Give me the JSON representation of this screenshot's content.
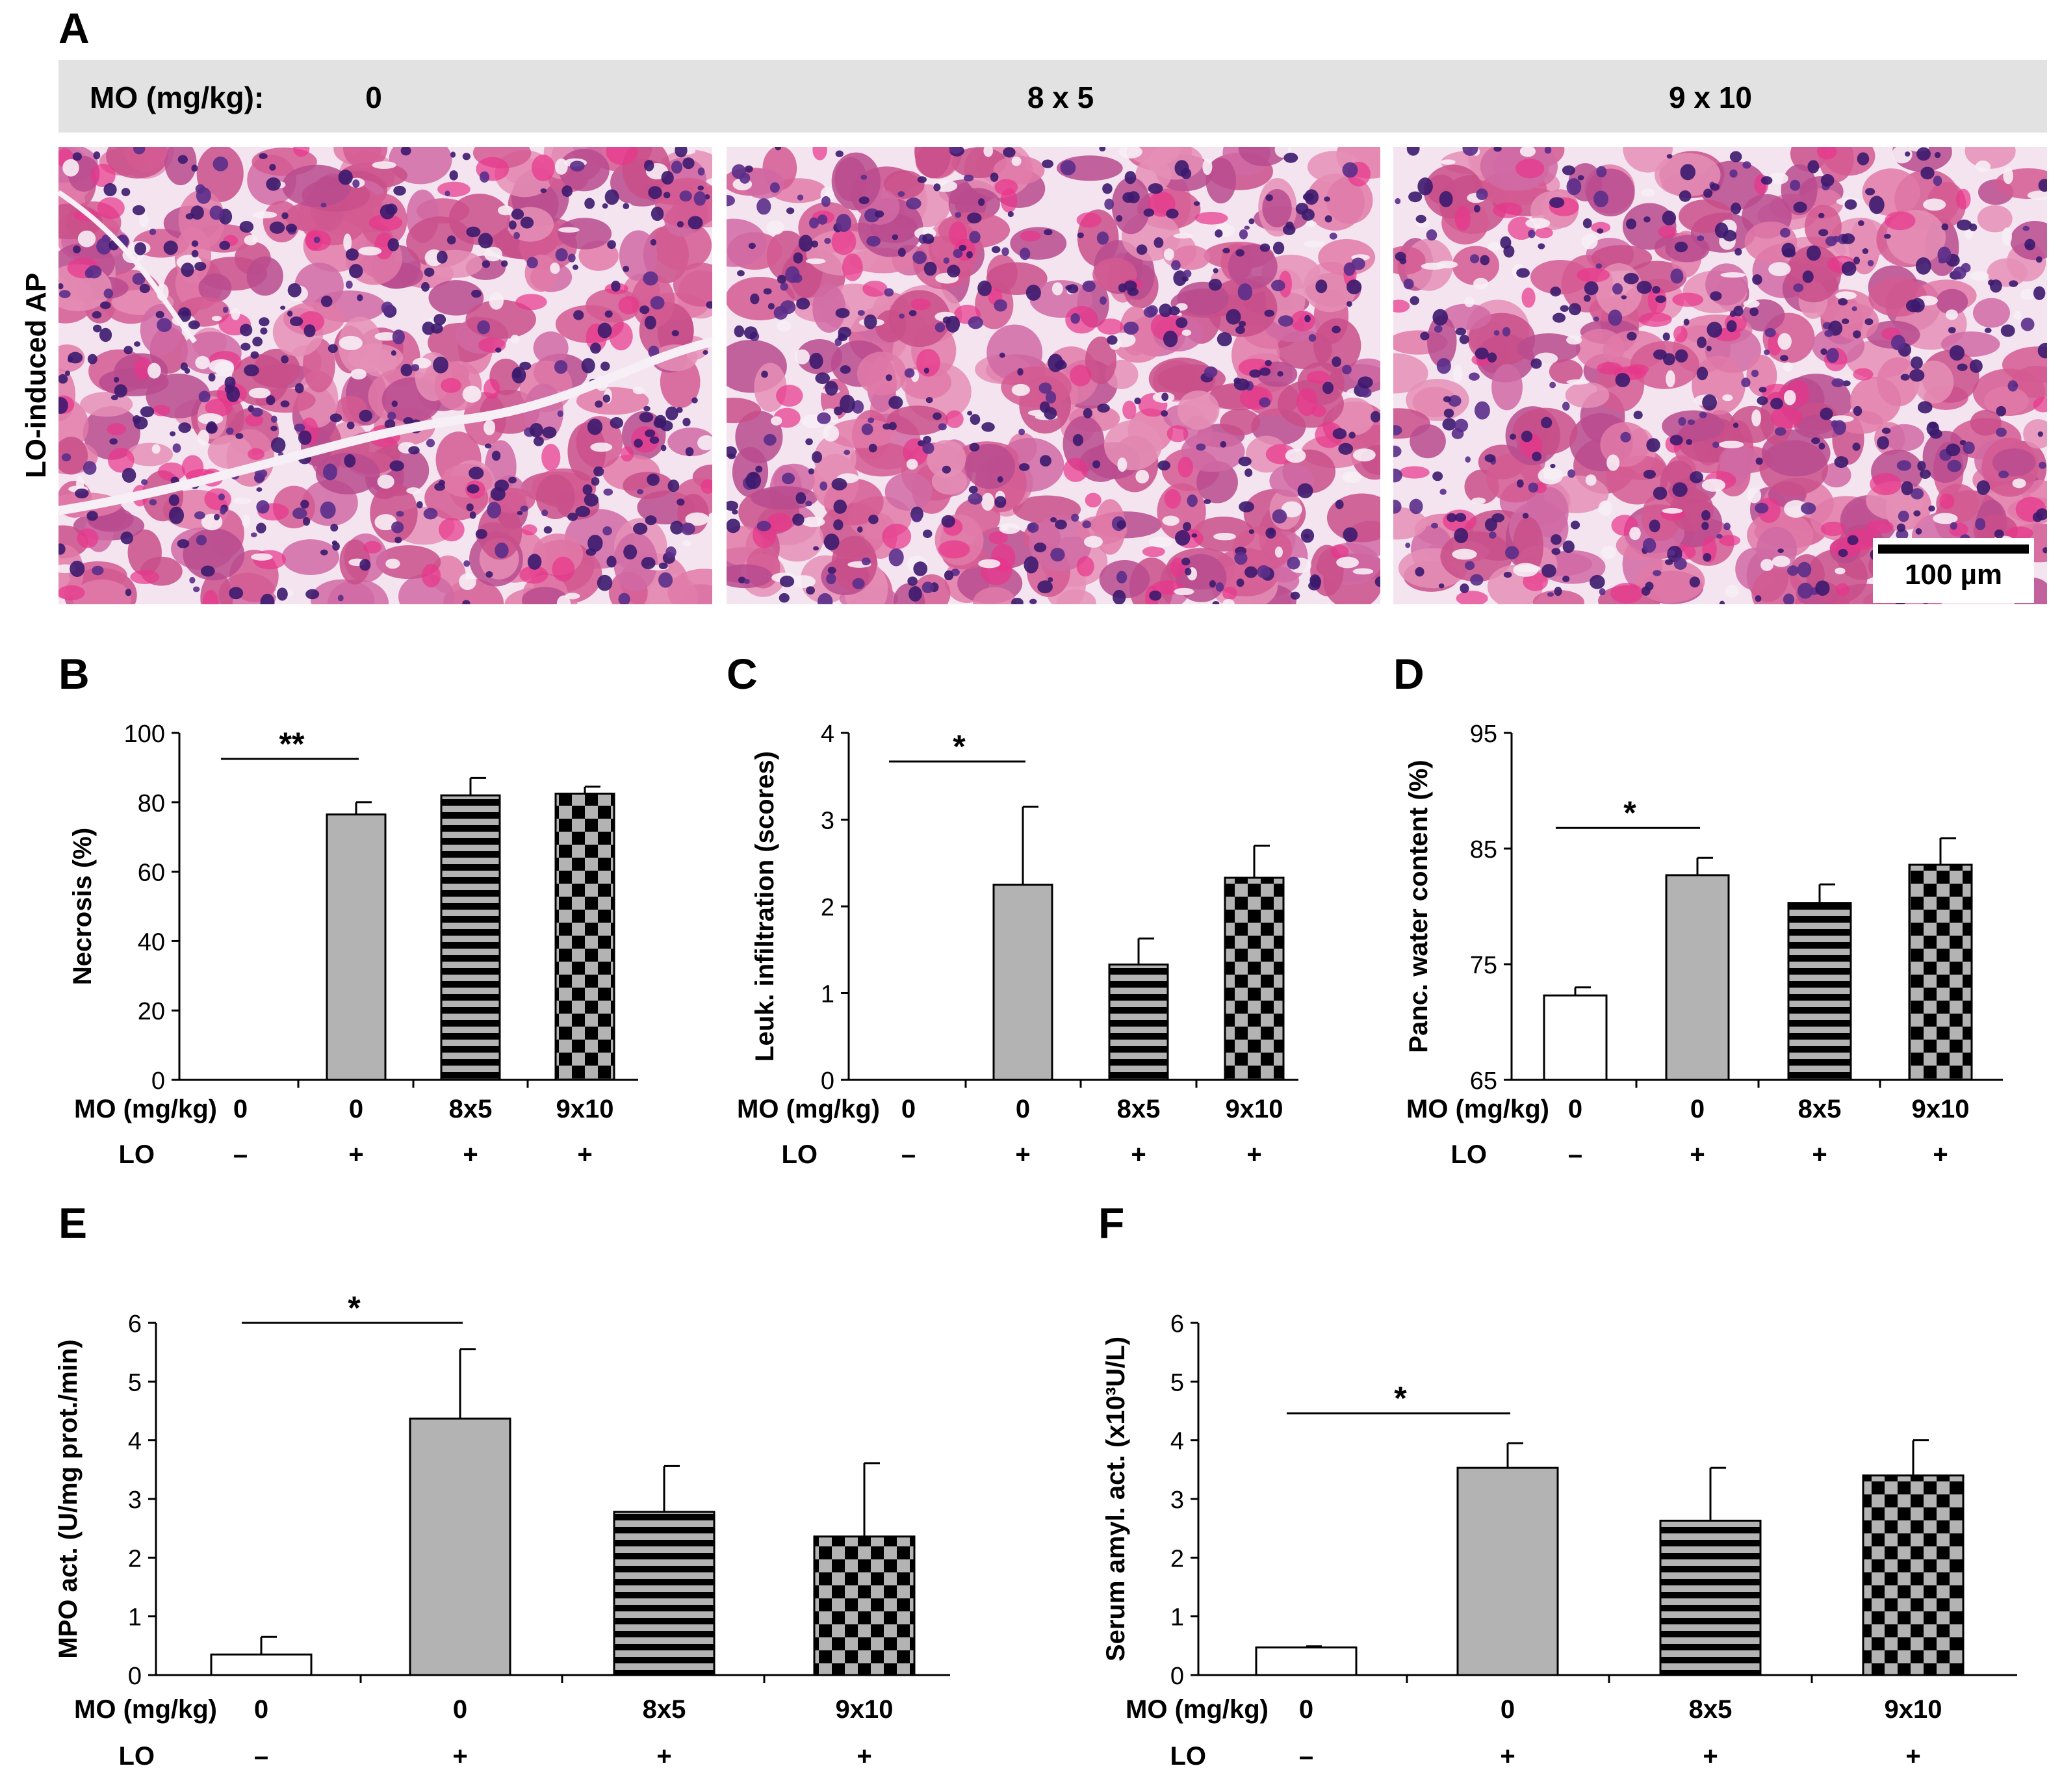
{
  "panel_labels": [
    "A",
    "B",
    "C",
    "D",
    "E",
    "F"
  ],
  "panel_a": {
    "header_label": "MO (mg/kg):",
    "header_doses": [
      "0",
      "8 x 5",
      "9 x 10"
    ],
    "row_label": "LO-induced AP",
    "scale_bar_label": "100 µm",
    "colors": {
      "header_bg": "#e2e2e2",
      "stain_pink": "#d9619a",
      "stain_purple": "#3c1a6e",
      "background": "#f4e4f0"
    }
  },
  "row_labels": {
    "dose": "MO (mg/kg)",
    "lo": "LO"
  },
  "groups": [
    {
      "dose": "0",
      "lo": "–",
      "pattern": "white"
    },
    {
      "dose": "0",
      "lo": "+",
      "pattern": "gray"
    },
    {
      "dose": "8x5",
      "lo": "+",
      "pattern": "stripes"
    },
    {
      "dose": "9x10",
      "lo": "+",
      "pattern": "checker"
    }
  ],
  "chart_data": [
    {
      "id": "B",
      "type": "bar",
      "ylabel": "Necrosis (%)",
      "ylim": [
        0,
        100
      ],
      "yticks": [
        "0",
        "20",
        "40",
        "60",
        "80",
        "100"
      ],
      "values": [
        0,
        76.5,
        82,
        82.5
      ],
      "errors": [
        0,
        3.5,
        5,
        2
      ],
      "sig": {
        "label": "**",
        "from": 0,
        "to": 1
      }
    },
    {
      "id": "C",
      "type": "bar",
      "ylabel": "Leuk. infiltration (scores)",
      "ylim": [
        0,
        4
      ],
      "yticks": [
        "0",
        "1",
        "2",
        "3",
        "4"
      ],
      "values": [
        0,
        2.25,
        1.33,
        2.33
      ],
      "errors": [
        0,
        0.9,
        0.3,
        0.37
      ],
      "sig": {
        "label": "*",
        "from": 0,
        "to": 1
      }
    },
    {
      "id": "D",
      "type": "bar",
      "ylabel": "Panc. water content (%)",
      "ylim": [
        65,
        95
      ],
      "yticks": [
        "65",
        "75",
        "85",
        "95"
      ],
      "values": [
        72.3,
        82.7,
        80.3,
        83.6
      ],
      "errors": [
        0.7,
        1.5,
        1.6,
        2.3
      ],
      "sig": {
        "label": "*",
        "from": 0,
        "to": 1
      }
    },
    {
      "id": "E",
      "type": "bar",
      "ylabel": "MPO act. (U/mg prot./min)",
      "ylim": [
        0,
        6
      ],
      "yticks": [
        "0",
        "1",
        "2",
        "3",
        "4",
        "5",
        "6"
      ],
      "values": [
        0.35,
        4.37,
        2.78,
        2.36
      ],
      "errors": [
        0.3,
        1.18,
        0.78,
        1.25
      ],
      "sig": {
        "label": "*",
        "from": 0,
        "to": 1
      }
    },
    {
      "id": "F",
      "type": "bar",
      "ylabel": "Serum amyl. act. (x10³U/L)",
      "ylim": [
        0,
        6
      ],
      "yticks": [
        "0",
        "1",
        "2",
        "3",
        "4",
        "5",
        "6"
      ],
      "values": [
        0.47,
        3.53,
        2.63,
        3.4
      ],
      "errors": [
        0.02,
        0.42,
        0.9,
        0.6
      ],
      "sig": {
        "label": "*",
        "from": 0,
        "to": 1
      }
    }
  ]
}
